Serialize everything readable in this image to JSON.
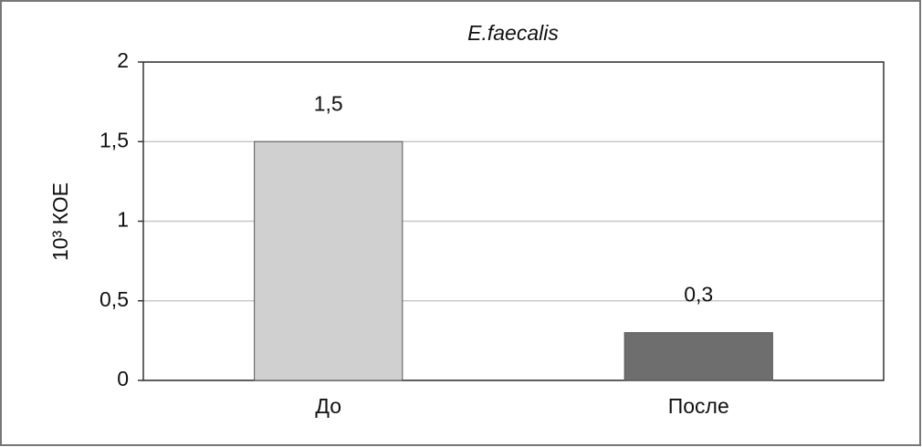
{
  "chart_data": {
    "type": "bar",
    "title": "E.faecalis",
    "y_label": "10³ КОЕ",
    "categories": [
      "До",
      "После"
    ],
    "values": [
      1.5,
      0.3
    ],
    "value_labels": [
      "1,5",
      "0,3"
    ],
    "colors": [
      "#d0d0d0",
      "#6e6e6e"
    ],
    "ylim": [
      0,
      2
    ],
    "yticks": [
      0,
      {
        "value": 0.5,
        "label": "0,5"
      },
      1,
      {
        "value": 1.5,
        "label": "1,5"
      },
      2
    ],
    "grid": true
  }
}
